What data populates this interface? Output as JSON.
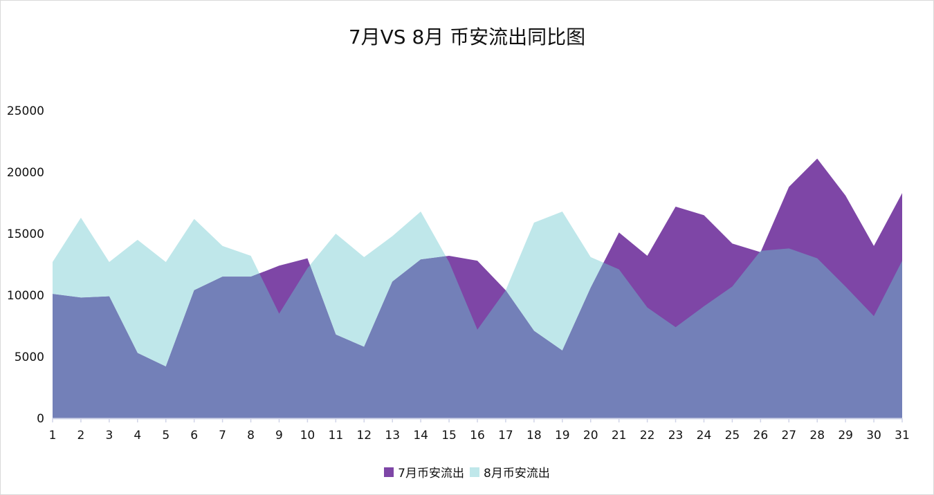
{
  "colors": {
    "july": "#7e46a6",
    "august": "#bfe7ea",
    "overlap": "#7380b8",
    "axis": "#d0d4e8",
    "text": "#111111",
    "border": "#d9d9d9"
  },
  "chart_data": {
    "type": "area",
    "title": "7月VS 8月 币安流出同比图",
    "xlabel": "",
    "ylabel": "",
    "x": [
      1,
      2,
      3,
      4,
      5,
      6,
      7,
      8,
      9,
      10,
      11,
      12,
      13,
      14,
      15,
      16,
      17,
      18,
      19,
      20,
      21,
      22,
      23,
      24,
      25,
      26,
      27,
      28,
      29,
      30,
      31
    ],
    "x_tick_labels": [
      "1",
      "2",
      "3",
      "4",
      "5",
      "6",
      "7",
      "8",
      "9",
      "10",
      "11",
      "12",
      "13",
      "14",
      "15",
      "16",
      "17",
      "18",
      "19",
      "20",
      "21",
      "22",
      "23",
      "24",
      "25",
      "26",
      "27",
      "28",
      "29",
      "30",
      "31"
    ],
    "ylim": [
      0,
      25000
    ],
    "y_ticks": [
      0,
      5000,
      10000,
      15000,
      20000,
      25000
    ],
    "y_tick_labels": [
      "0",
      "5000",
      "10000",
      "15000",
      "20000",
      "25000"
    ],
    "grid": false,
    "legend_position": "bottom-center",
    "series": [
      {
        "name": "7月币安流出",
        "color": "#7e46a6",
        "values": [
          10100,
          9800,
          9900,
          5300,
          4200,
          10400,
          11500,
          11500,
          12400,
          13000,
          6800,
          5800,
          11100,
          12900,
          13200,
          12800,
          10400,
          7100,
          5500,
          10600,
          15100,
          13200,
          17200,
          16500,
          14200,
          13500,
          18800,
          21100,
          18100,
          14000,
          18300
        ]
      },
      {
        "name": "8月币安流出",
        "color": "#bfe7ea",
        "values": [
          12700,
          16300,
          12700,
          14500,
          12700,
          16200,
          14000,
          13200,
          8500,
          12200,
          15000,
          13100,
          14800,
          16800,
          12700,
          7200,
          10400,
          15900,
          16800,
          13100,
          12100,
          9000,
          7400,
          9100,
          10700,
          13600,
          13800,
          13000,
          10700,
          8300,
          12800
        ]
      }
    ]
  }
}
